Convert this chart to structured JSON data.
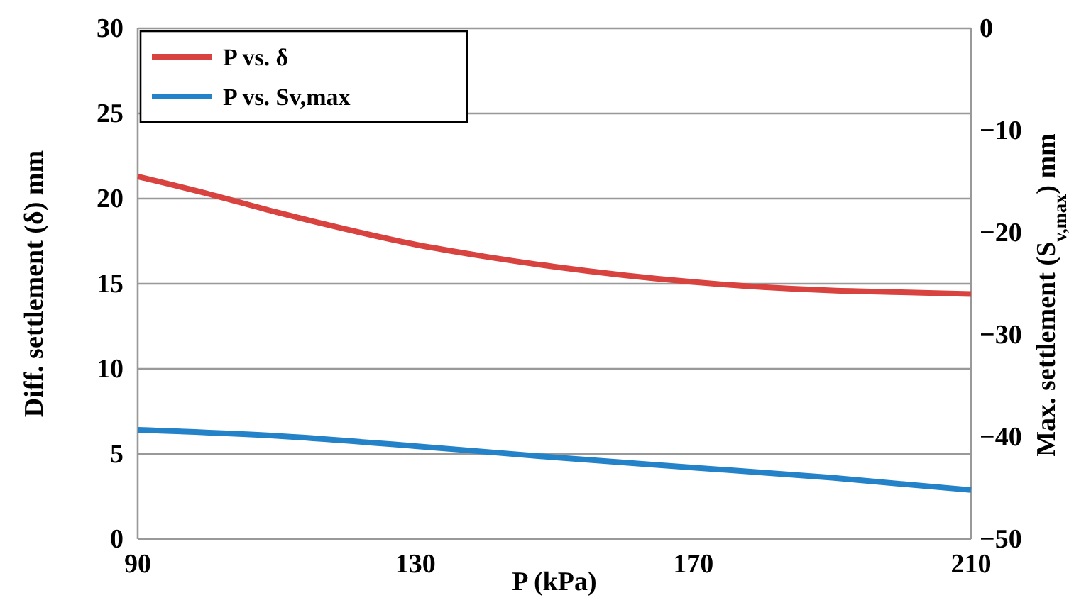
{
  "chart_data": {
    "type": "line",
    "xlabel": "P (kPa)",
    "ylabel": "Diff. settlement (δ) mm",
    "y2label": "Max. settlement (S$_{v,max}$) mm",
    "xlim": [
      90,
      210
    ],
    "xticks": [
      90,
      130,
      170,
      210
    ],
    "ylim": [
      0,
      30
    ],
    "yticks": [
      0,
      5,
      10,
      15,
      20,
      25,
      30
    ],
    "y2lim": [
      -50,
      0
    ],
    "y2ticks": [
      {
        "value": -50,
        "label": "−50"
      },
      {
        "value": -40,
        "label": "−40"
      },
      {
        "value": -30,
        "label": "−30"
      },
      {
        "value": -20,
        "label": "−20"
      },
      {
        "value": -10,
        "label": "−10"
      },
      0
    ],
    "grid": "y",
    "legend": "top left",
    "marker": "none",
    "line_style": "solid",
    "series": [
      {
        "name": "P vs. δ",
        "color": "#d9433f",
        "x": [
          90,
          100,
          110,
          120,
          130,
          140,
          150,
          160,
          170,
          180,
          190,
          200,
          210
        ],
        "values": [
          21.3,
          20.3,
          19.2,
          18.2,
          17.3,
          16.6,
          16.0,
          15.5,
          15.1,
          14.8,
          14.6,
          14.5,
          14.4
        ]
      },
      {
        "name": "P vs. Sv,max",
        "color": "#2382c8",
        "axis": "y2",
        "x": [
          90,
          110,
          130,
          150,
          170,
          190,
          210
        ],
        "values": [
          -39.3,
          -39.9,
          -40.9,
          -42.0,
          -43.0,
          -44.0,
          -45.2
        ]
      }
    ]
  }
}
